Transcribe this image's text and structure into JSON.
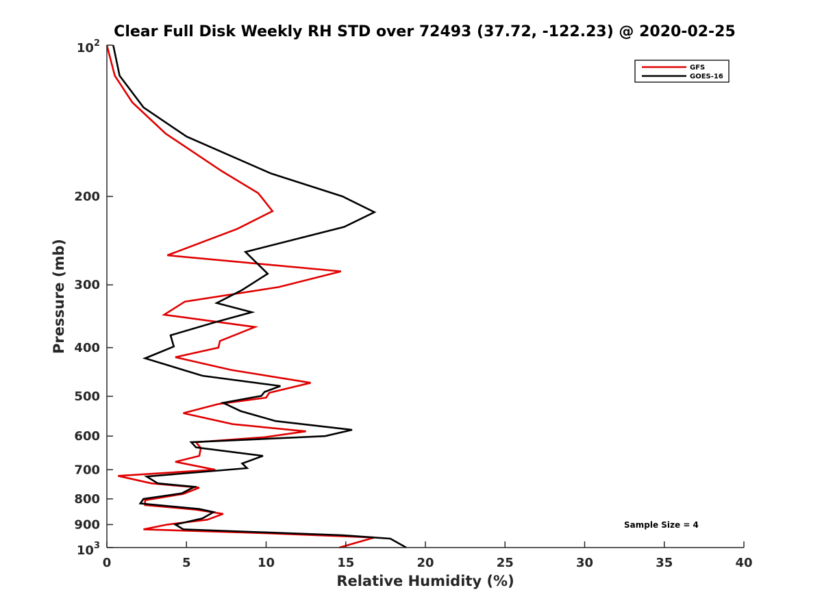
{
  "chart_data": {
    "type": "line",
    "title": "Clear Full Disk Weekly RH STD over 72493 (37.72, -122.23) @ 2020-02-25",
    "xlabel": "Relative Humidity (%)",
    "ylabel": "Pressure (mb)",
    "xlim": [
      0,
      40
    ],
    "ylim": [
      100,
      1000
    ],
    "y_scale": "log",
    "y_reversed": true,
    "x_ticks": [
      "0",
      "5",
      "10",
      "15",
      "20",
      "25",
      "30",
      "35",
      "40"
    ],
    "y_ticks": [
      {
        "value": 100,
        "label": "10",
        "sup": "2"
      },
      {
        "value": 200,
        "label": "200",
        "sup": ""
      },
      {
        "value": 300,
        "label": "300",
        "sup": ""
      },
      {
        "value": 400,
        "label": "400",
        "sup": ""
      },
      {
        "value": 500,
        "label": "500",
        "sup": ""
      },
      {
        "value": 600,
        "label": "600",
        "sup": ""
      },
      {
        "value": 700,
        "label": "700",
        "sup": ""
      },
      {
        "value": 800,
        "label": "800",
        "sup": ""
      },
      {
        "value": 900,
        "label": "900",
        "sup": ""
      },
      {
        "value": 1000,
        "label": "10",
        "sup": "3"
      }
    ],
    "legend_position": "top-right",
    "grid": false,
    "annotation": "Sample Size = 4",
    "series": [
      {
        "name": "GFS",
        "color": "#e00000",
        "points": [
          [
            0.0,
            100
          ],
          [
            0.5,
            115
          ],
          [
            1.6,
            130
          ],
          [
            3.7,
            150
          ],
          [
            7.2,
            178
          ],
          [
            9.5,
            197
          ],
          [
            10.4,
            214
          ],
          [
            8.2,
            232
          ],
          [
            3.8,
            262
          ],
          [
            14.7,
            282
          ],
          [
            10.8,
            303
          ],
          [
            4.9,
            324
          ],
          [
            3.6,
            344
          ],
          [
            9.3,
            364
          ],
          [
            7.1,
            388
          ],
          [
            7.0,
            400
          ],
          [
            4.3,
            418
          ],
          [
            7.8,
            443
          ],
          [
            12.8,
            470
          ],
          [
            10.2,
            492
          ],
          [
            10.0,
            503
          ],
          [
            7.0,
            518
          ],
          [
            4.8,
            540
          ],
          [
            7.9,
            568
          ],
          [
            12.5,
            587
          ],
          [
            9.9,
            603
          ],
          [
            5.6,
            617
          ],
          [
            5.9,
            634
          ],
          [
            5.8,
            657
          ],
          [
            4.3,
            675
          ],
          [
            6.8,
            700
          ],
          [
            0.7,
            720
          ],
          [
            2.8,
            745
          ],
          [
            5.8,
            760
          ],
          [
            4.8,
            782
          ],
          [
            2.4,
            805
          ],
          [
            2.4,
            823
          ],
          [
            5.5,
            840
          ],
          [
            7.3,
            857
          ],
          [
            6.3,
            880
          ],
          [
            3.8,
            900
          ],
          [
            2.3,
            920
          ],
          [
            10.3,
            937
          ],
          [
            16.8,
            955
          ],
          [
            14.6,
            1000
          ]
        ]
      },
      {
        "name": "GOES-16",
        "color": "#000000",
        "points": [
          [
            0.4,
            100
          ],
          [
            0.8,
            115
          ],
          [
            2.3,
            133
          ],
          [
            5.0,
            152
          ],
          [
            10.3,
            180
          ],
          [
            14.8,
            200
          ],
          [
            16.8,
            215
          ],
          [
            14.9,
            230
          ],
          [
            8.7,
            258
          ],
          [
            10.1,
            285
          ],
          [
            8.5,
            307
          ],
          [
            6.9,
            326
          ],
          [
            9.1,
            340
          ],
          [
            6.8,
            356
          ],
          [
            4.0,
            378
          ],
          [
            4.2,
            398
          ],
          [
            2.4,
            420
          ],
          [
            6.0,
            455
          ],
          [
            10.9,
            477
          ],
          [
            9.9,
            490
          ],
          [
            9.7,
            499
          ],
          [
            7.3,
            515
          ],
          [
            8.4,
            535
          ],
          [
            10.6,
            560
          ],
          [
            15.4,
            583
          ],
          [
            13.7,
            600
          ],
          [
            5.3,
            617
          ],
          [
            5.6,
            632
          ],
          [
            9.8,
            657
          ],
          [
            8.5,
            680
          ],
          [
            8.8,
            695
          ],
          [
            2.5,
            722
          ],
          [
            3.2,
            745
          ],
          [
            5.5,
            757
          ],
          [
            4.7,
            780
          ],
          [
            2.3,
            800
          ],
          [
            2.1,
            817
          ],
          [
            5.8,
            838
          ],
          [
            6.7,
            850
          ],
          [
            6.0,
            875
          ],
          [
            4.3,
            900
          ],
          [
            4.8,
            920
          ],
          [
            14.8,
            945
          ],
          [
            17.8,
            960
          ],
          [
            18.8,
            1000
          ]
        ]
      }
    ]
  }
}
